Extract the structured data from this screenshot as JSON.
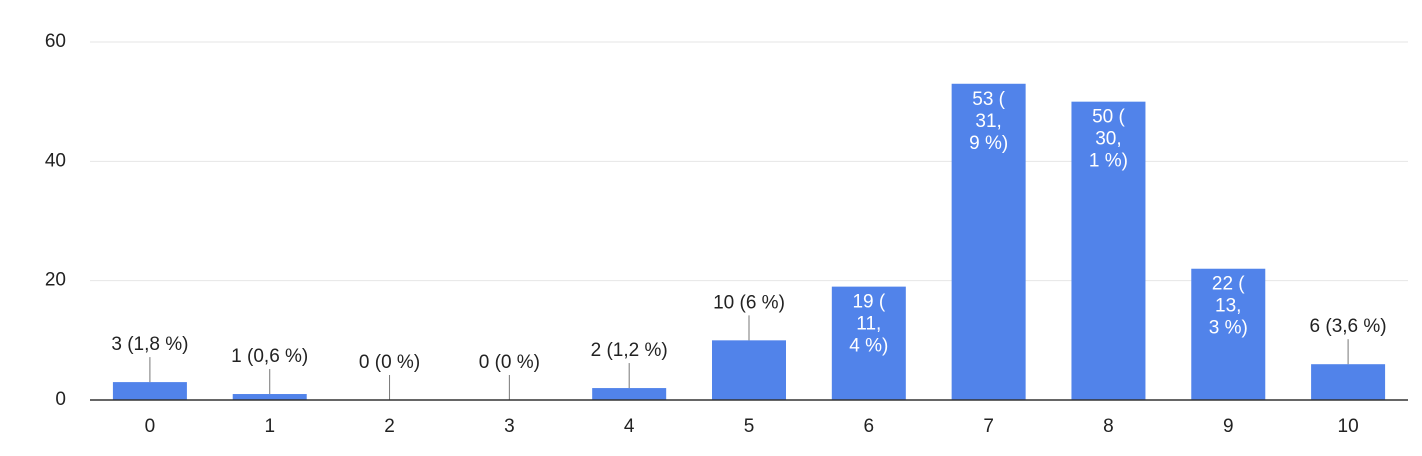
{
  "chart_data": {
    "type": "bar",
    "categories": [
      "0",
      "1",
      "2",
      "3",
      "4",
      "5",
      "6",
      "7",
      "8",
      "9",
      "10"
    ],
    "values": [
      3,
      1,
      0,
      0,
      2,
      10,
      19,
      53,
      50,
      22,
      6
    ],
    "value_labels": [
      "3 (1,8 %)",
      "1 (0,6 %)",
      "0 (0 %)",
      "0 (0 %)",
      "2 (1,2 %)",
      "10 (6 %)",
      "19 (11,4 %)",
      "53 (31,9 %)",
      "50 (30,1 %)",
      "22 (13,3 %)",
      "6 (3,6 %)"
    ],
    "color": "#5183ea",
    "ylim": [
      0,
      60
    ],
    "yticks": [
      0,
      20,
      40,
      60
    ],
    "grid": true
  }
}
